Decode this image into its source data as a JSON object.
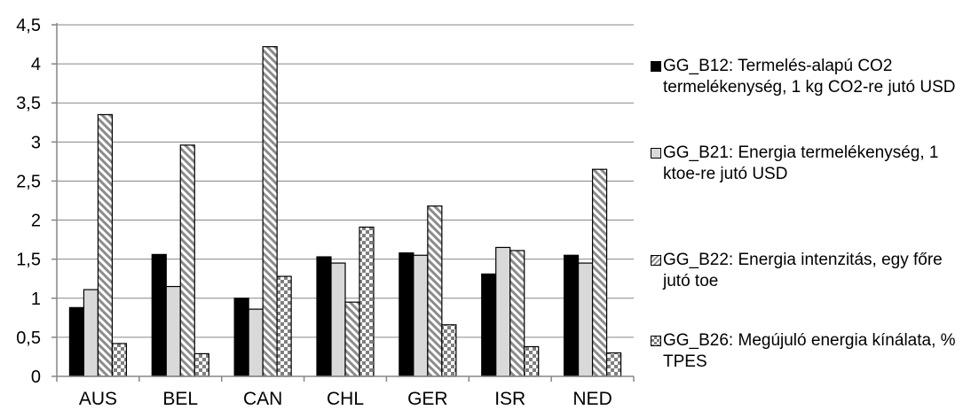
{
  "chart_data": {
    "type": "bar",
    "categories": [
      "AUS",
      "BEL",
      "CAN",
      "CHL",
      "GER",
      "ISR",
      "NED"
    ],
    "series": [
      {
        "name": "GG_B12: Termelés-alapú CO2 termelékenység, 1 kg CO2-re jutó USD",
        "pattern": "solid-black",
        "values": [
          0.88,
          1.56,
          1.0,
          1.53,
          1.58,
          1.31,
          1.55
        ]
      },
      {
        "name": "GG_B21: Energia termelékenység, 1 ktoe-re jutó USD",
        "pattern": "light-gray",
        "values": [
          1.11,
          1.15,
          0.86,
          1.45,
          1.55,
          1.65,
          1.45
        ]
      },
      {
        "name": "GG_B22: Energia intenzitás, egy főre jutó toe",
        "pattern": "diagonal-hatch",
        "values": [
          3.35,
          2.96,
          4.22,
          0.95,
          2.18,
          1.61,
          2.65
        ]
      },
      {
        "name": "GG_B26: Megújuló energia kínálata, % TPES",
        "pattern": "checkerboard",
        "values": [
          0.42,
          0.29,
          1.28,
          1.91,
          0.66,
          0.38,
          0.3
        ]
      }
    ],
    "y_ticks": [
      "0",
      "0,5",
      "1",
      "1,5",
      "2",
      "2,5",
      "3",
      "3,5",
      "4",
      "4,5"
    ],
    "ylim": [
      0,
      4.5
    ],
    "grid": true,
    "legend_position": "right",
    "colors": {
      "bar_outline": "#000000",
      "solid": "#000000",
      "light": "#d9d9d9",
      "grid": "#868686",
      "axis": "#868686"
    }
  }
}
